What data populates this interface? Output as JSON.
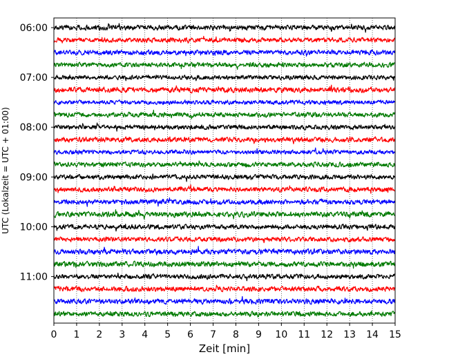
{
  "chart_data": {
    "type": "line",
    "xlabel": "Zeit  [min]",
    "ylabel": "UTC (Lokalzeit = UTC + 01:00)",
    "xlim": [
      0,
      15
    ],
    "x_ticks": [
      "0",
      "1",
      "2",
      "3",
      "4",
      "5",
      "6",
      "7",
      "8",
      "9",
      "10",
      "11",
      "12",
      "13",
      "14",
      "15"
    ],
    "y_ticks": [
      "06:00",
      "07:00",
      "08:00",
      "09:00",
      "10:00",
      "11:00"
    ],
    "grid": "vertical dotted",
    "trace_colors": [
      "#000000",
      "#ff0000",
      "#0000ff",
      "#007a00"
    ],
    "series": [
      {
        "start": "06:00",
        "color": "#000000",
        "amplitude": 0.25
      },
      {
        "start": "06:15",
        "color": "#ff0000",
        "amplitude": 0.24
      },
      {
        "start": "06:30",
        "color": "#0000ff",
        "amplitude": 0.25
      },
      {
        "start": "06:45",
        "color": "#007a00",
        "amplitude": 0.25
      },
      {
        "start": "07:00",
        "color": "#000000",
        "amplitude": 0.22
      },
      {
        "start": "07:15",
        "color": "#ff0000",
        "amplitude": 0.27
      },
      {
        "start": "07:30",
        "color": "#0000ff",
        "amplitude": 0.22
      },
      {
        "start": "07:45",
        "color": "#007a00",
        "amplitude": 0.24
      },
      {
        "start": "08:00",
        "color": "#000000",
        "amplitude": 0.23
      },
      {
        "start": "08:15",
        "color": "#ff0000",
        "amplitude": 0.25
      },
      {
        "start": "08:30",
        "color": "#0000ff",
        "amplitude": 0.22
      },
      {
        "start": "08:45",
        "color": "#007a00",
        "amplitude": 0.24
      },
      {
        "start": "09:00",
        "color": "#000000",
        "amplitude": 0.24
      },
      {
        "start": "09:15",
        "color": "#ff0000",
        "amplitude": 0.25
      },
      {
        "start": "09:30",
        "color": "#0000ff",
        "amplitude": 0.25
      },
      {
        "start": "09:45",
        "color": "#007a00",
        "amplitude": 0.27
      },
      {
        "start": "10:00",
        "color": "#000000",
        "amplitude": 0.25
      },
      {
        "start": "10:15",
        "color": "#ff0000",
        "amplitude": 0.24
      },
      {
        "start": "10:30",
        "color": "#0000ff",
        "amplitude": 0.27
      },
      {
        "start": "10:45",
        "color": "#007a00",
        "amplitude": 0.27
      },
      {
        "start": "11:00",
        "color": "#000000",
        "amplitude": 0.25
      },
      {
        "start": "11:15",
        "color": "#ff0000",
        "amplitude": 0.26
      },
      {
        "start": "11:30",
        "color": "#0000ff",
        "amplitude": 0.26
      },
      {
        "start": "11:45",
        "color": "#007a00",
        "amplitude": 0.25
      }
    ]
  }
}
